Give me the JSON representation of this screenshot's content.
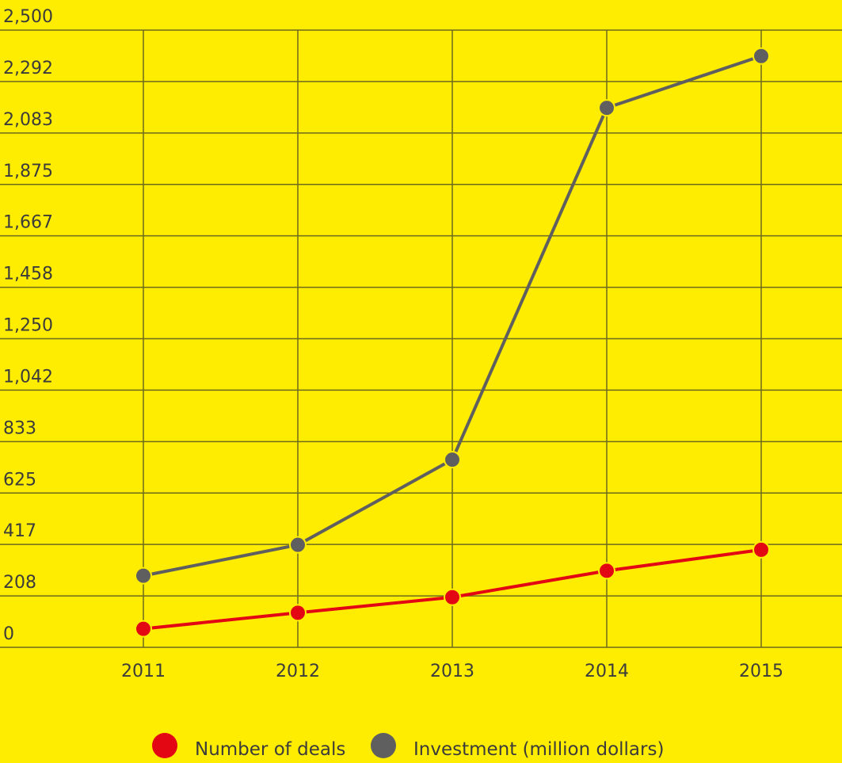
{
  "chart_data": {
    "type": "line",
    "title": "",
    "xlabel": "",
    "ylabel": "",
    "x": [
      "2011",
      "2012",
      "2013",
      "2014",
      "2015"
    ],
    "y_ticks": [
      "0",
      "208",
      "417",
      "625",
      "833",
      "1,042",
      "1,250",
      "1,458",
      "1,667",
      "1,875",
      "2,083",
      "2,292",
      "2,500"
    ],
    "ylim": [
      0,
      2500
    ],
    "grid": true,
    "legend_position": "bottom",
    "series": [
      {
        "name": "Number of deals",
        "color": "#e30613",
        "values": [
          75,
          140,
          203,
          310,
          395
        ]
      },
      {
        "name": "Investment (million dollars)",
        "color": "#5f5f5f",
        "values": [
          290,
          415,
          760,
          2185,
          2395
        ]
      }
    ],
    "colors": {
      "background": "#ffed00",
      "grid": "#6d6a1e",
      "text": "#3b3b3b"
    }
  }
}
